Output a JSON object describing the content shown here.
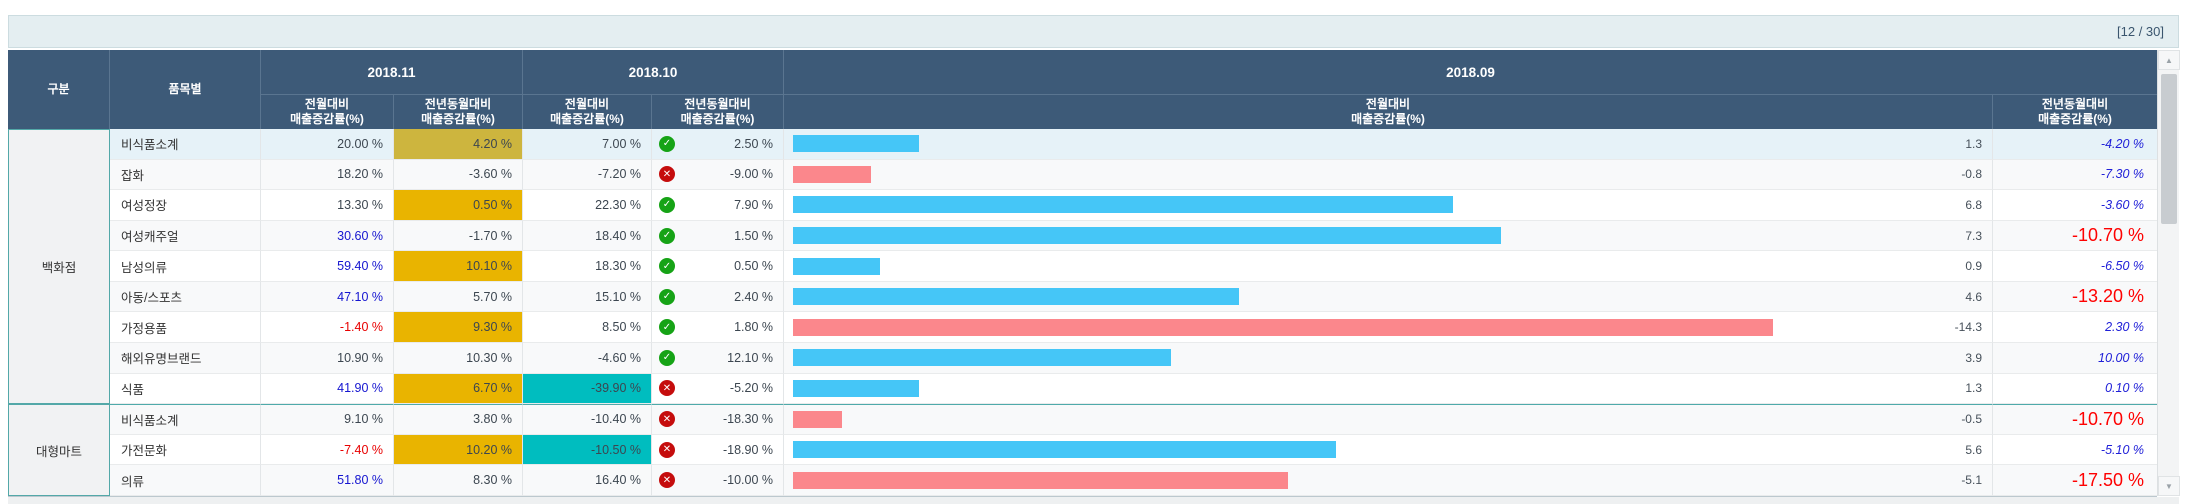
{
  "page": {
    "counter": "[12 / 30]"
  },
  "header": {
    "col_group": "구분",
    "col_item": "품목별",
    "months": [
      "2018.11",
      "2018.10",
      "2018.09"
    ],
    "prev_line1": "전월대비",
    "prev_line2": "매출증감률(%)",
    "yoy_line1": "전년동월대비",
    "yoy_line2": "매출증감률(%)"
  },
  "colors": {
    "header_bg": "#3d5a78",
    "gold": "#e9b400",
    "pale_green": "#cde7d2",
    "teal": "#00bdbf",
    "green": "#58c202",
    "bar_blue": "#45c6f7",
    "bar_pink": "#fb878c",
    "blue_text": "#1515d0",
    "red_text": "#e80000",
    "big_red": "#fe0101",
    "row_highlight": "#e6f2f8",
    "group_border": "#4faaaa"
  },
  "status_icons": {
    "up": "✓",
    "down": "✕"
  },
  "groups": [
    {
      "name": "백화점",
      "rows": [
        {
          "item": "비식품소계",
          "m11_prev": "20.00 %",
          "m11_prev_style": "plain",
          "m11_yoy": "4.20 %",
          "m11_yoy_bg": "gold",
          "m10_prev": "7.00 %",
          "m10_prev_bg": "none",
          "status": "up",
          "m10_yoy": "2.50 %",
          "bar": 1.3,
          "m09_yoy": "-4.20 %",
          "m09_style": "blue"
        },
        {
          "item": "잡화",
          "m11_prev": "18.20 %",
          "m11_prev_style": "plain",
          "m11_yoy": "-3.60 %",
          "m11_yoy_bg": "pale_green",
          "m10_prev": "-7.20 %",
          "m10_prev_bg": "teal",
          "status": "down",
          "m10_yoy": "-9.00 %",
          "bar": -0.8,
          "m09_yoy": "-7.30 %",
          "m09_style": "blue"
        },
        {
          "item": "여성정장",
          "m11_prev": "13.30 %",
          "m11_prev_style": "plain",
          "m11_yoy": "0.50 %",
          "m11_yoy_bg": "gold",
          "m10_prev": "22.30 %",
          "m10_prev_bg": "none",
          "status": "up",
          "m10_yoy": "7.90 %",
          "bar": 6.8,
          "m09_yoy": "-3.60 %",
          "m09_style": "blue"
        },
        {
          "item": "여성캐주얼",
          "m11_prev": "30.60 %",
          "m11_prev_style": "blue",
          "m11_yoy": "-1.70 %",
          "m11_yoy_bg": "none",
          "m10_prev": "18.40 %",
          "m10_prev_bg": "none",
          "status": "up",
          "m10_yoy": "1.50 %",
          "bar": 7.3,
          "m09_yoy": "-10.70 %",
          "m09_style": "red"
        },
        {
          "item": "남성의류",
          "m11_prev": "59.40 %",
          "m11_prev_style": "blue",
          "m11_yoy": "10.10 %",
          "m11_yoy_bg": "gold",
          "m10_prev": "18.30 %",
          "m10_prev_bg": "none",
          "status": "up",
          "m10_yoy": "0.50 %",
          "bar": 0.9,
          "m09_yoy": "-6.50 %",
          "m09_style": "blue"
        },
        {
          "item": "아동/스포츠",
          "m11_prev": "47.10 %",
          "m11_prev_style": "blue",
          "m11_yoy": "5.70 %",
          "m11_yoy_bg": "gold",
          "m10_prev": "15.10 %",
          "m10_prev_bg": "none",
          "status": "up",
          "m10_yoy": "2.40 %",
          "bar": 4.6,
          "m09_yoy": "-13.20 %",
          "m09_style": "red"
        },
        {
          "item": "가정용품",
          "m11_prev": "-1.40 %",
          "m11_prev_style": "red",
          "m11_yoy": "9.30 %",
          "m11_yoy_bg": "gold",
          "m10_prev": "8.50 %",
          "m10_prev_bg": "none",
          "status": "up",
          "m10_yoy": "1.80 %",
          "bar": -14.3,
          "m09_yoy": "2.30 %",
          "m09_style": "blue"
        },
        {
          "item": "해외유명브랜드",
          "m11_prev": "10.90 %",
          "m11_prev_style": "plain",
          "m11_yoy": "10.30 %",
          "m11_yoy_bg": "gold",
          "m10_prev": "-4.60 %",
          "m10_prev_bg": "green",
          "status": "up",
          "m10_yoy": "12.10 %",
          "bar": 3.9,
          "m09_yoy": "10.00 %",
          "m09_style": "blue"
        },
        {
          "item": "식품",
          "m11_prev": "41.90 %",
          "m11_prev_style": "blue",
          "m11_yoy": "6.70 %",
          "m11_yoy_bg": "gold",
          "m10_prev": "-39.90 %",
          "m10_prev_bg": "teal",
          "status": "down",
          "m10_yoy": "-5.20 %",
          "bar": 1.3,
          "m09_yoy": "0.10 %",
          "m09_style": "blue"
        }
      ]
    },
    {
      "name": "대형마트",
      "rows": [
        {
          "item": "비식품소계",
          "m11_prev": "9.10 %",
          "m11_prev_style": "plain",
          "m11_yoy": "3.80 %",
          "m11_yoy_bg": "gold",
          "m10_prev": "-10.40 %",
          "m10_prev_bg": "teal",
          "status": "down",
          "m10_yoy": "-18.30 %",
          "bar": -0.5,
          "m09_yoy": "-10.70 %",
          "m09_style": "red"
        },
        {
          "item": "가전문화",
          "m11_prev": "-7.40 %",
          "m11_prev_style": "red",
          "m11_yoy": "10.20 %",
          "m11_yoy_bg": "gold",
          "m10_prev": "-10.50 %",
          "m10_prev_bg": "teal",
          "status": "down",
          "m10_yoy": "-18.90 %",
          "bar": 5.6,
          "m09_yoy": "-5.10 %",
          "m09_style": "blue"
        },
        {
          "item": "의류",
          "m11_prev": "51.80 %",
          "m11_prev_style": "blue",
          "m11_yoy": "8.30 %",
          "m11_yoy_bg": "gold",
          "m10_prev": "16.40 %",
          "m10_prev_bg": "none",
          "status": "down",
          "m10_yoy": "-10.00 %",
          "bar": -5.1,
          "m09_yoy": "-17.50 %",
          "m09_style": "red"
        }
      ]
    }
  ]
}
